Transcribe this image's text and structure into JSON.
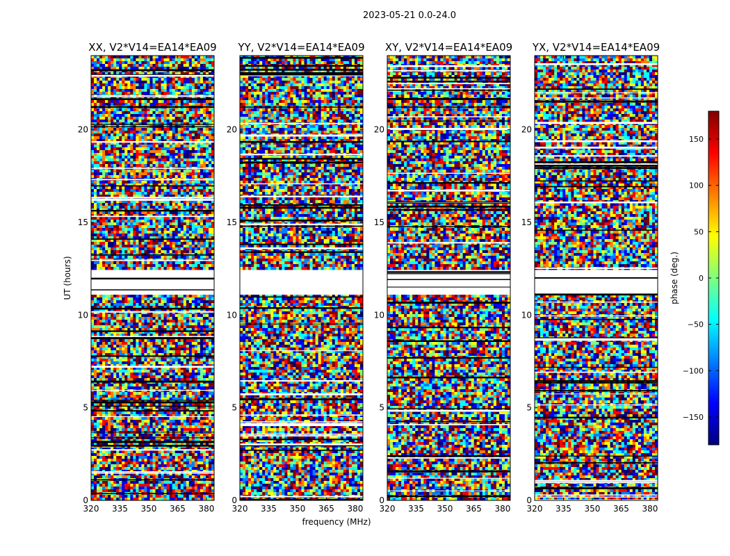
{
  "figure_title": "2023-05-21 0.0-24.0",
  "chart_data": {
    "type": "heatmap",
    "panels": [
      {
        "title": "XX, V2*V14=EA14*EA09"
      },
      {
        "title": "YY, V2*V14=EA14*EA09"
      },
      {
        "title": "XY, V2*V14=EA14*EA09"
      },
      {
        "title": "YX, V2*V14=EA14*EA09"
      }
    ],
    "xlabel": "frequency (MHz)",
    "ylabel": "UT (hours)",
    "x_ticks": [
      "320",
      "335",
      "350",
      "365",
      "380"
    ],
    "x_tick_values": [
      320,
      335,
      350,
      365,
      380
    ],
    "xlim": [
      320,
      384
    ],
    "y_ticks": [
      "0",
      "5",
      "10",
      "15",
      "20"
    ],
    "y_tick_values": [
      0,
      5,
      10,
      15,
      20
    ],
    "ylim": [
      0,
      24
    ],
    "colorbar": {
      "label": "phase (deg.)",
      "ticks": [
        "150",
        "100",
        "50",
        "0",
        "−50",
        "−100",
        "−150"
      ],
      "tick_values": [
        150,
        100,
        50,
        0,
        -50,
        -100,
        -150
      ],
      "range": [
        -180,
        180
      ],
      "colormap": "jet",
      "colormap_colors": [
        "#00007f",
        "#0000ff",
        "#007fff",
        "#00ffff",
        "#7fff7f",
        "#ffff00",
        "#ff7f00",
        "#ff0000",
        "#7f0000"
      ]
    },
    "blank_intervals_hours": [
      [
        11.05,
        12.5
      ]
    ],
    "values": "phase noise (not individually readable)"
  }
}
